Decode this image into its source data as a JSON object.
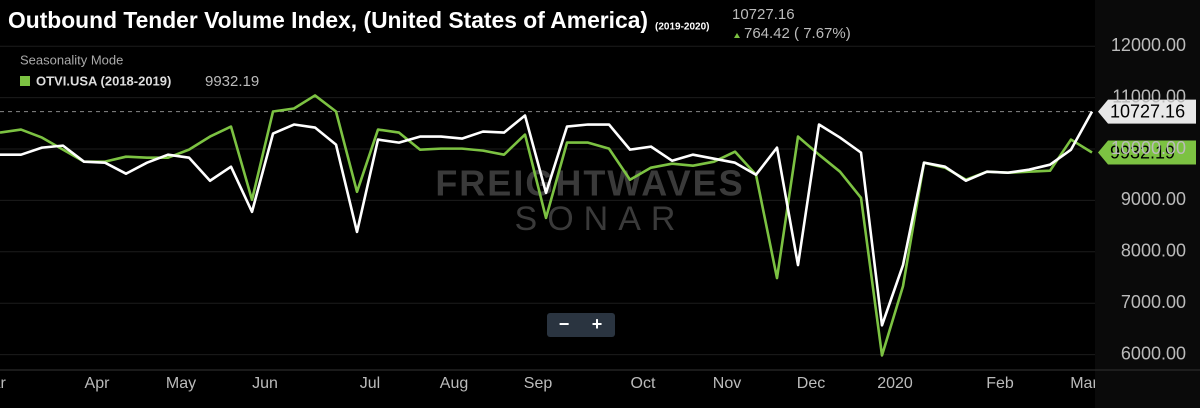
{
  "chart_data": {
    "type": "line",
    "title": "Outbound Tender Volume Index, (United States of America)",
    "current_value": "10727.16",
    "change": "764.42 ( 7.67%)",
    "mode_label": "Seasonality Mode",
    "watermark": [
      "FREIGHTWAVES",
      "SONAR"
    ],
    "zoom_buttons": [
      "−",
      "+"
    ],
    "categories": [
      "Mar",
      null,
      null,
      null,
      null,
      "Apr",
      null,
      null,
      null,
      "May",
      null,
      null,
      null,
      "Jun",
      null,
      null,
      null,
      null,
      "Jul",
      null,
      null,
      null,
      "Aug",
      null,
      null,
      null,
      "Sep",
      null,
      null,
      null,
      null,
      "Oct",
      null,
      null,
      null,
      "Nov",
      null,
      null,
      null,
      "Dec",
      null,
      null,
      null,
      "2020",
      null,
      null,
      null,
      null,
      "Feb",
      null,
      null,
      null,
      "Mar"
    ],
    "series": [
      {
        "name": "(2019-2020)",
        "color": "#ffffff",
        "values": [
          9890,
          9890,
          10027,
          10066,
          9754,
          9734,
          9520,
          9734,
          9890,
          9832,
          9383,
          9656,
          8777,
          10300,
          10477,
          10418,
          10086,
          8387,
          10184,
          10125,
          10242,
          10242,
          10203,
          10340,
          10320,
          10652,
          9148,
          10437,
          10477,
          10477,
          9988,
          10047,
          9773,
          9890,
          9812,
          9734,
          9500,
          10027,
          7742,
          10477,
          10223,
          9930,
          6570,
          7742,
          9734,
          9656,
          9383,
          9559,
          9539,
          9598,
          9695,
          9988,
          10727.16
        ]
      },
      {
        "name": "OTVI.USA (2018-2019)",
        "color": "#7cc242",
        "values": [
          10320,
          10379,
          10223,
          9988,
          9754,
          9754,
          9851,
          9832,
          9832,
          9988,
          10242,
          10437,
          9012,
          10730,
          10789,
          11043,
          10730,
          9168,
          10379,
          10320,
          9988,
          10008,
          10008,
          9969,
          9890,
          10281,
          8660,
          10125,
          10125,
          10008,
          9402,
          9637,
          9715,
          9676,
          9754,
          9949,
          9500,
          7488,
          10242,
          9890,
          9559,
          9051,
          5984,
          7332,
          9734,
          9637,
          9402,
          9559,
          9539,
          9559,
          9578,
          10184,
          9932.19
        ]
      }
    ],
    "ylim": [
      5700,
      12900
    ],
    "yticks": [
      {
        "value": 6000,
        "label": "6000.00"
      },
      {
        "value": 7000,
        "label": "7000.00"
      },
      {
        "value": 8000,
        "label": "8000.00"
      },
      {
        "value": 9000,
        "label": "9000.00"
      },
      {
        "value": 10000,
        "label": "10000.00"
      },
      {
        "value": 11000,
        "label": "11000.00"
      },
      {
        "value": 12000,
        "label": "12000.00"
      }
    ],
    "grid": true
  }
}
